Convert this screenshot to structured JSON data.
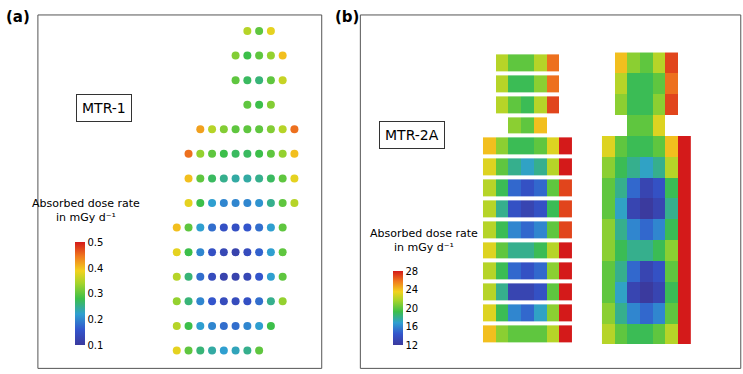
{
  "chart_data": [
    {
      "type": "heatmap",
      "title": "(a)",
      "annotations": [
        "MTR-1"
      ],
      "marker": "dots",
      "tick_labels": false,
      "colorbar": {
        "title": [
          "Absorbed dose rate",
          "in mGy d⁻¹"
        ],
        "range": [
          0.1,
          0.5
        ],
        "ticks": [
          0.1,
          0.2,
          0.3,
          0.4,
          0.5
        ]
      },
      "cells": [
        [
          null,
          null,
          null,
          null,
          null,
          null,
          0.35,
          0.3,
          0.38,
          null,
          null,
          null
        ],
        [
          null,
          null,
          null,
          null,
          null,
          0.32,
          0.28,
          0.3,
          0.33,
          0.4,
          null,
          null
        ],
        [
          null,
          null,
          null,
          null,
          null,
          0.3,
          0.27,
          0.26,
          0.3,
          0.36,
          null,
          null
        ],
        [
          null,
          null,
          null,
          null,
          null,
          null,
          0.3,
          0.28,
          0.32,
          null,
          null,
          null
        ],
        [
          null,
          null,
          0.42,
          0.35,
          0.32,
          0.3,
          0.3,
          0.3,
          0.32,
          0.35,
          0.45,
          null
        ],
        [
          null,
          0.45,
          0.33,
          0.3,
          0.28,
          0.27,
          0.27,
          0.28,
          0.3,
          0.33,
          0.4,
          null
        ],
        [
          null,
          0.4,
          0.3,
          0.27,
          0.25,
          0.24,
          0.24,
          0.25,
          0.27,
          0.3,
          0.38,
          null
        ],
        [
          null,
          0.38,
          0.28,
          0.22,
          0.2,
          0.2,
          0.2,
          0.21,
          0.25,
          0.3,
          0.35,
          null
        ],
        [
          0.4,
          0.3,
          0.22,
          0.18,
          0.15,
          0.15,
          0.16,
          0.18,
          0.22,
          0.3,
          null,
          null
        ],
        [
          0.38,
          0.28,
          0.2,
          0.15,
          0.13,
          0.12,
          0.14,
          0.17,
          0.22,
          0.3,
          null,
          null
        ],
        [
          0.35,
          0.26,
          0.18,
          0.14,
          0.12,
          0.12,
          0.13,
          0.16,
          0.22,
          0.3,
          null,
          null
        ],
        [
          0.33,
          0.26,
          0.2,
          0.16,
          0.14,
          0.14,
          0.15,
          0.18,
          0.25,
          0.33,
          null,
          null
        ],
        [
          0.35,
          0.28,
          0.22,
          0.2,
          0.18,
          0.18,
          0.2,
          0.22,
          0.28,
          null,
          null,
          null
        ],
        [
          0.38,
          0.3,
          0.26,
          0.24,
          0.22,
          0.23,
          0.25,
          0.3,
          null,
          null,
          null,
          null
        ]
      ]
    },
    {
      "type": "heatmap",
      "title": "(b)",
      "annotations": [
        "MTR-2A"
      ],
      "tick_labels": false,
      "colorbar": {
        "title": [
          "Absorbed dose rate",
          "in mGy d⁻¹"
        ],
        "range": [
          12,
          28
        ],
        "ticks": [
          12,
          16,
          20,
          24,
          28
        ]
      },
      "views": [
        {
          "marker": "slices",
          "cells": [
            [
              null,
              22,
              20,
              20,
              22,
              26,
              null
            ],
            [
              null,
              22,
              19,
              19,
              21,
              26,
              null
            ],
            [
              null,
              22,
              20,
              19,
              22,
              27,
              null
            ],
            [
              null,
              null,
              21,
              20,
              24,
              null,
              null
            ],
            [
              24,
              21,
              19,
              19,
              20,
              23,
              28
            ],
            [
              23,
              20,
              18,
              17,
              18,
              22,
              28
            ],
            [
              22,
              19,
              15,
              14,
              15,
              20,
              27
            ],
            [
              22,
              18,
              14,
              13,
              14,
              19,
              27
            ],
            [
              22,
              19,
              16,
              15,
              16,
              20,
              27
            ],
            [
              23,
              20,
              18,
              18,
              19,
              22,
              28
            ],
            [
              22,
              19,
              15,
              14,
              15,
              21,
              28
            ],
            [
              22,
              18,
              13,
              13,
              14,
              20,
              28
            ],
            [
              23,
              19,
              16,
              15,
              17,
              21,
              28
            ],
            [
              24,
              21,
              20,
              20,
              20,
              22,
              28
            ]
          ]
        },
        {
          "marker": "section",
          "cells": [
            [
              null,
              24,
              21,
              20,
              22,
              27,
              null
            ],
            [
              null,
              22,
              19,
              19,
              20,
              26,
              null
            ],
            [
              null,
              21,
              19,
              19,
              21,
              27,
              null
            ],
            [
              null,
              null,
              20,
              20,
              23,
              null,
              null
            ],
            [
              23,
              20,
              19,
              19,
              20,
              24,
              28
            ],
            [
              21,
              19,
              18,
              17,
              18,
              22,
              28
            ],
            [
              20,
              18,
              15,
              13,
              14,
              19,
              28
            ],
            [
              20,
              17,
              13,
              12,
              13,
              18,
              28
            ],
            [
              21,
              18,
              16,
              15,
              16,
              19,
              28
            ],
            [
              21,
              19,
              18,
              18,
              19,
              21,
              28
            ],
            [
              20,
              18,
              15,
              13,
              14,
              20,
              28
            ],
            [
              20,
              17,
              13,
              12,
              13,
              19,
              28
            ],
            [
              21,
              18,
              16,
              15,
              16,
              20,
              28
            ],
            [
              22,
              20,
              19,
              19,
              20,
              22,
              28
            ]
          ]
        }
      ]
    }
  ]
}
